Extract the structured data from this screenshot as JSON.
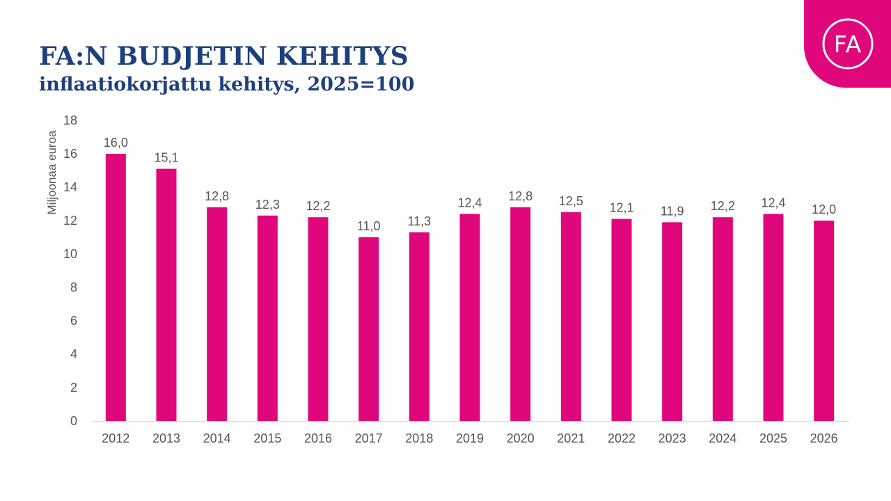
{
  "header": {
    "title": "FA:N BUDJETIN KEHITYS",
    "subtitle": "inflaatiokorjattu kehitys, 2025=100"
  },
  "logo": {
    "text": "FA",
    "icon": "fa-logo-icon",
    "color": "#e0077d"
  },
  "chart_data": {
    "type": "bar",
    "title": "FA:N BUDJETIN KEHITYS",
    "subtitle": "inflaatiokorjattu kehitys, 2025=100",
    "ylabel": "Miljoonaa euroa",
    "xlabel": "",
    "ylim": [
      0,
      18
    ],
    "yticks": [
      0,
      2,
      4,
      6,
      8,
      10,
      12,
      14,
      16,
      18
    ],
    "categories": [
      "2012",
      "2013",
      "2014",
      "2015",
      "2016",
      "2017",
      "2018",
      "2019",
      "2020",
      "2021",
      "2022",
      "2023",
      "2024",
      "2025",
      "2026"
    ],
    "values": [
      16.0,
      15.1,
      12.8,
      12.3,
      12.2,
      11.0,
      11.3,
      12.4,
      12.8,
      12.5,
      12.1,
      11.9,
      12.2,
      12.4,
      12.0
    ],
    "labels": [
      "16,0",
      "15,1",
      "12,8",
      "12,3",
      "12,2",
      "11,0",
      "11,3",
      "12,4",
      "12,8",
      "12,5",
      "12,1",
      "11,9",
      "12,2",
      "12,4",
      "12,0"
    ],
    "grid": false,
    "legend": "none",
    "bar_color": "#e0077d",
    "text_color": "#555555"
  }
}
